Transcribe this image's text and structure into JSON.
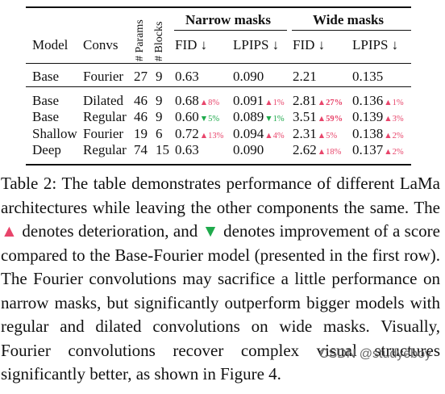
{
  "headers": {
    "model": "Model",
    "convs": "Convs",
    "params": "# Params",
    "blocks": "# Blocks",
    "narrow": "Narrow masks",
    "wide": "Wide masks",
    "fid_narrow": "FID ↓",
    "lpips_narrow": "LPIPS ↓",
    "fid_wide": "FID ↓",
    "lpips_wide": "LPIPS ↓"
  },
  "rows": [
    {
      "model": "Base",
      "convs": "Fourier",
      "params": "27",
      "blocks": "9",
      "fid_n": "0.63",
      "fid_n_d": "",
      "fid_n_dir": "",
      "lpips_n": "0.090",
      "lpips_n_d": "",
      "lpips_n_dir": "",
      "fid_w": "2.21",
      "fid_w_d": "",
      "fid_w_dir": "",
      "lpips_w": "0.135",
      "lpips_w_d": "",
      "lpips_w_dir": ""
    },
    {
      "model": "Base",
      "convs": "Dilated",
      "params": "46",
      "blocks": "9",
      "fid_n": "0.68",
      "fid_n_d": "▲8%",
      "fid_n_dir": "up",
      "lpips_n": "0.091",
      "lpips_n_d": "▲1%",
      "lpips_n_dir": "up",
      "fid_w": "2.81",
      "fid_w_d": "▲27%",
      "fid_w_dir": "up-bold",
      "lpips_w": "0.136",
      "lpips_w_d": "▲1%",
      "lpips_w_dir": "up"
    },
    {
      "model": "Base",
      "convs": "Regular",
      "params": "46",
      "blocks": "9",
      "fid_n": "0.60",
      "fid_n_d": "▼5%",
      "fid_n_dir": "down",
      "lpips_n": "0.089",
      "lpips_n_d": "▼1%",
      "lpips_n_dir": "down",
      "fid_w": "3.51",
      "fid_w_d": "▲59%",
      "fid_w_dir": "up-bold",
      "lpips_w": "0.139",
      "lpips_w_d": "▲3%",
      "lpips_w_dir": "up"
    },
    {
      "model": "Shallow",
      "convs": "Fourier",
      "params": "19",
      "blocks": "6",
      "fid_n": "0.72",
      "fid_n_d": "▲13%",
      "fid_n_dir": "up",
      "lpips_n": "0.094",
      "lpips_n_d": "▲4%",
      "lpips_n_dir": "up",
      "fid_w": "2.31",
      "fid_w_d": "▲5%",
      "fid_w_dir": "up",
      "lpips_w": "0.138",
      "lpips_w_d": "▲2%",
      "lpips_w_dir": "up"
    },
    {
      "model": "Deep",
      "convs": "Regular",
      "params": "74",
      "blocks": "15",
      "fid_n": "0.63",
      "fid_n_d": "",
      "fid_n_dir": "",
      "lpips_n": "0.090",
      "lpips_n_d": "",
      "lpips_n_dir": "",
      "fid_w": "2.62",
      "fid_w_d": "▲18%",
      "fid_w_dir": "up",
      "lpips_w": "0.137",
      "lpips_w_d": "▲2%",
      "lpips_w_dir": "up"
    }
  ],
  "caption": {
    "p1": "Table 2: The table demonstrates performance of different LaMa architectures while leaving the other components the same. The ",
    "tri_up": "▲",
    "p2": " denotes deterioration, and ",
    "tri_down": "▼",
    "p3": " denotes improvement of a score compared to the Base-Fourier model (presented in the first row). The Fourier convolutions may sacrifice a little performance on narrow masks, but significantly outperform bigger models with regular and dilated convolutions on wide masks. Visually, Fourier convolutions recover complex visual structures significantly better, as shown in Figure 4."
  },
  "watermark": "CSDN @studyeboy",
  "colors": {
    "up": "#e8456b",
    "down": "#1faa4c"
  }
}
